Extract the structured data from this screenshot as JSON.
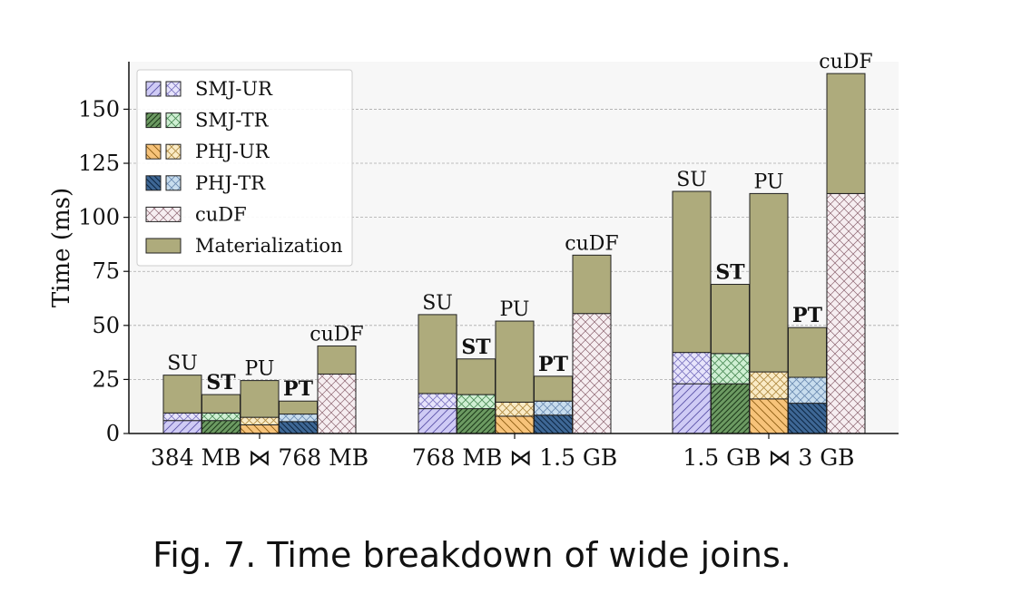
{
  "chart_data": {
    "type": "bar",
    "stacked": true,
    "ylabel": "Time (ms)",
    "ylim": [
      0,
      172
    ],
    "yticks": [
      0,
      25,
      50,
      75,
      100,
      125,
      150
    ],
    "grid": "horizontal-dashed",
    "legend_position": "top-left",
    "groups": [
      {
        "label": "384 MB ⋈ 768 MB",
        "bars": [
          {
            "label": "SU",
            "bold": false,
            "kind": "SMJ-UR",
            "solid": 6.0,
            "hatched": 3.5,
            "materialization": 17.5,
            "total": 27.0
          },
          {
            "label": "ST",
            "bold": true,
            "kind": "SMJ-TR",
            "solid": 6.0,
            "hatched": 3.5,
            "materialization": 8.5,
            "total": 18.0
          },
          {
            "label": "PU",
            "bold": false,
            "kind": "PHJ-UR",
            "solid": 4.0,
            "hatched": 3.5,
            "materialization": 17.0,
            "total": 24.5
          },
          {
            "label": "PT",
            "bold": true,
            "kind": "PHJ-TR",
            "solid": 5.5,
            "hatched": 3.5,
            "materialization": 6.0,
            "total": 15.0
          },
          {
            "label": "cuDF",
            "bold": false,
            "kind": "cuDF",
            "solid": 0,
            "hatched": 27.5,
            "materialization": 13.0,
            "total": 40.5
          }
        ]
      },
      {
        "label": "768 MB ⋈ 1.5 GB",
        "bars": [
          {
            "label": "SU",
            "bold": false,
            "kind": "SMJ-UR",
            "solid": 11.5,
            "hatched": 7.0,
            "materialization": 36.5,
            "total": 55.0
          },
          {
            "label": "ST",
            "bold": true,
            "kind": "SMJ-TR",
            "solid": 11.5,
            "hatched": 6.5,
            "materialization": 16.5,
            "total": 34.5
          },
          {
            "label": "PU",
            "bold": false,
            "kind": "PHJ-UR",
            "solid": 8.0,
            "hatched": 6.5,
            "materialization": 37.5,
            "total": 52.0
          },
          {
            "label": "PT",
            "bold": true,
            "kind": "PHJ-TR",
            "solid": 8.5,
            "hatched": 6.5,
            "materialization": 11.5,
            "total": 26.5
          },
          {
            "label": "cuDF",
            "bold": false,
            "kind": "cuDF",
            "solid": 0,
            "hatched": 55.5,
            "materialization": 27.0,
            "total": 82.5
          }
        ]
      },
      {
        "label": "1.5 GB ⋈ 3 GB",
        "bars": [
          {
            "label": "SU",
            "bold": false,
            "kind": "SMJ-UR",
            "solid": 23.0,
            "hatched": 14.5,
            "materialization": 74.5,
            "total": 112.0
          },
          {
            "label": "ST",
            "bold": true,
            "kind": "SMJ-TR",
            "solid": 23.0,
            "hatched": 14.0,
            "materialization": 32.0,
            "total": 69.0
          },
          {
            "label": "PU",
            "bold": false,
            "kind": "PHJ-UR",
            "solid": 16.0,
            "hatched": 12.5,
            "materialization": 82.5,
            "total": 111.0
          },
          {
            "label": "PT",
            "bold": true,
            "kind": "PHJ-TR",
            "solid": 14.0,
            "hatched": 12.0,
            "materialization": 23.0,
            "total": 49.0
          },
          {
            "label": "cuDF",
            "bold": false,
            "kind": "cuDF",
            "solid": 0,
            "hatched": 111.0,
            "materialization": 55.5,
            "total": 166.5
          }
        ]
      }
    ],
    "legend": [
      {
        "label": "SMJ-UR",
        "kind": "SMJ-UR",
        "style": "pair"
      },
      {
        "label": "SMJ-TR",
        "kind": "SMJ-TR",
        "style": "pair"
      },
      {
        "label": "PHJ-UR",
        "kind": "PHJ-UR",
        "style": "pair"
      },
      {
        "label": "PHJ-TR",
        "kind": "PHJ-TR",
        "style": "pair"
      },
      {
        "label": "cuDF",
        "kind": "cuDF",
        "style": "single"
      },
      {
        "label": "Materialization",
        "kind": "Materialization",
        "style": "solid"
      }
    ],
    "colors": {
      "SMJ-UR": {
        "fill": "#cfcbf5",
        "light": "#e7e4fb"
      },
      "SMJ-TR": {
        "fill": "#6c9a62",
        "light": "#cfefd3"
      },
      "PHJ-UR": {
        "fill": "#f7c37a",
        "light": "#faebc6"
      },
      "PHJ-TR": {
        "fill": "#3e6795",
        "light": "#c8ddee"
      },
      "cuDF": {
        "fill": "#f6eef1",
        "line": "#8c6470"
      },
      "Materialization": {
        "fill": "#aeab7c"
      },
      "grid": "#aaaaaa",
      "plot_bg": "#f7f7f7"
    }
  },
  "caption": "Fig. 7.  Time breakdown of wide joins."
}
